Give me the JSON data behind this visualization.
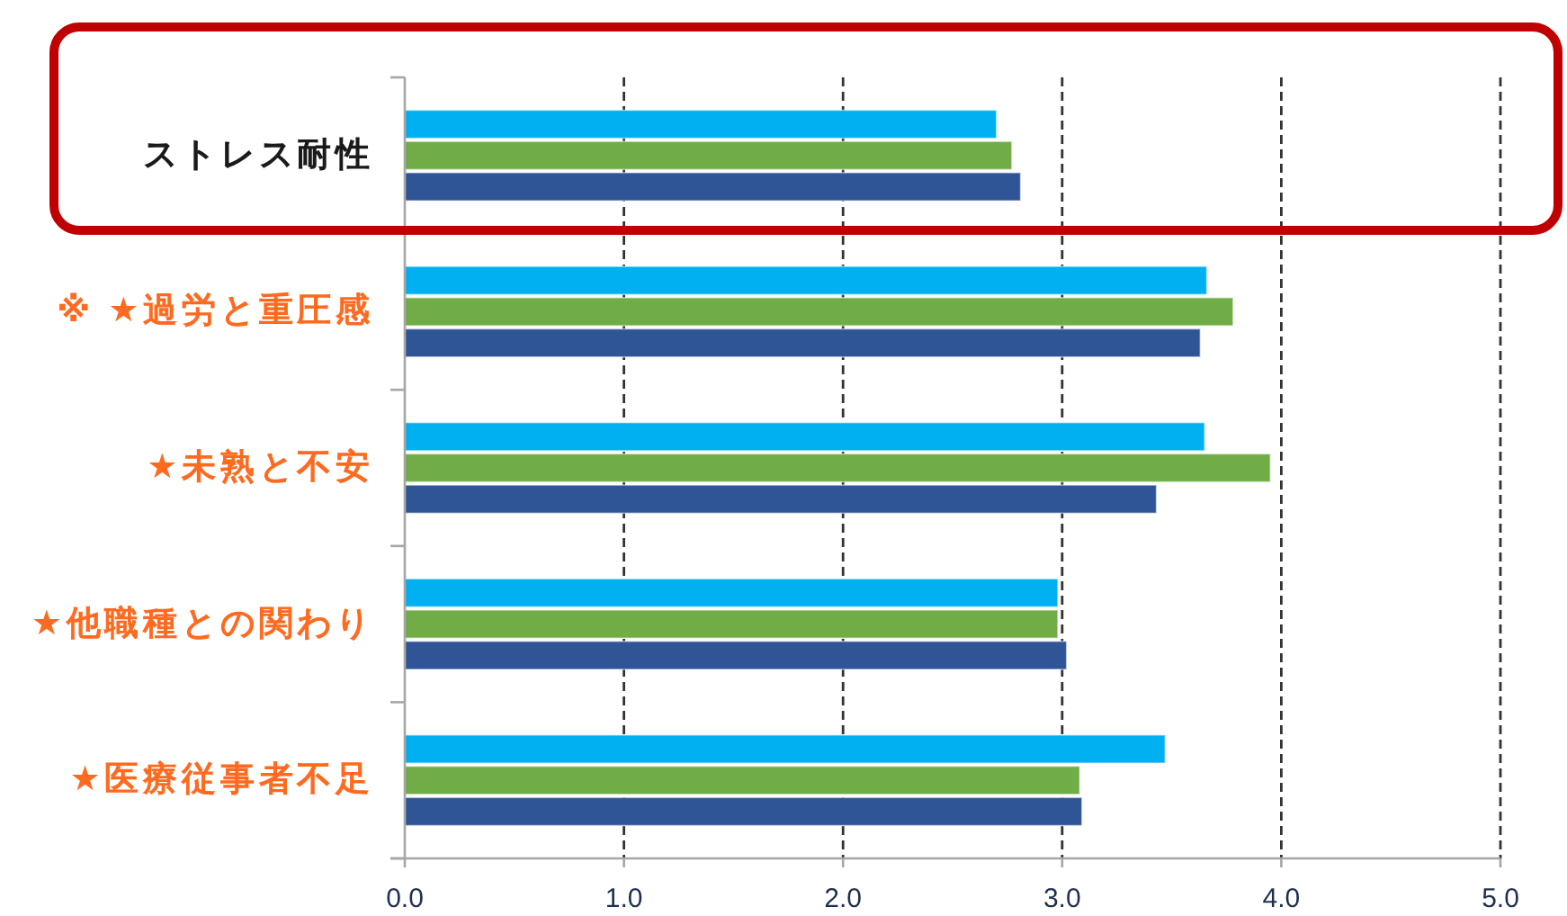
{
  "chart_data": {
    "type": "bar",
    "orientation": "horizontal",
    "categories": [
      "ストレス耐性",
      "※ ★過労と重圧感",
      "★未熟と不安",
      "★他職種との関わり",
      "★医療従事者不足"
    ],
    "series": [
      {
        "color": "#00b0f0",
        "values": [
          2.7,
          3.66,
          3.65,
          2.98,
          3.47
        ]
      },
      {
        "color": "#70ad47",
        "values": [
          2.77,
          3.78,
          3.95,
          2.98,
          3.08
        ]
      },
      {
        "color": "#2f5597",
        "values": [
          2.81,
          3.63,
          3.43,
          3.02,
          3.09
        ]
      }
    ],
    "xlim": [
      0,
      5
    ],
    "xticks": [
      {
        "value": 0,
        "label": "0.0"
      },
      {
        "value": 1,
        "label": "1.0"
      },
      {
        "value": 2,
        "label": "2.0"
      },
      {
        "value": 3,
        "label": "3.0"
      },
      {
        "value": 4,
        "label": "4.0"
      },
      {
        "value": 5,
        "label": "5.0"
      }
    ],
    "grid": "x"
  }
}
